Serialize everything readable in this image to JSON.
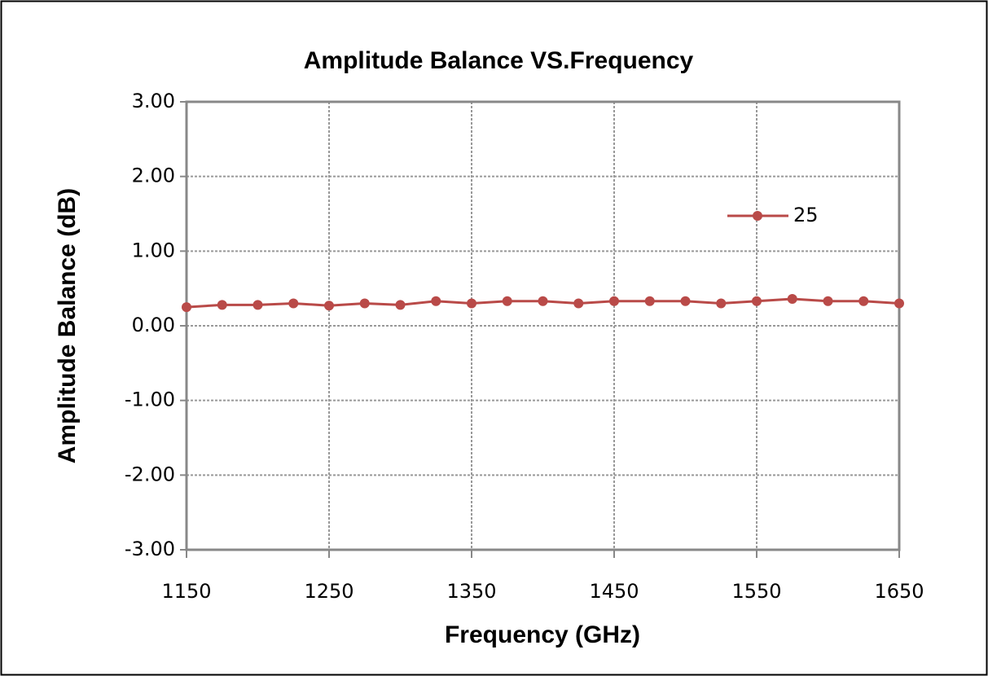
{
  "chart_data": {
    "type": "line",
    "title": "Amplitude Balance VS.Frequency",
    "x_label": "Frequency (GHz)",
    "y_label": "Amplitude Balance (dB)",
    "x": [
      1150,
      1175,
      1200,
      1225,
      1250,
      1275,
      1300,
      1325,
      1350,
      1375,
      1400,
      1425,
      1450,
      1475,
      1500,
      1525,
      1550,
      1575,
      1600,
      1625,
      1650
    ],
    "series": [
      {
        "name": "25",
        "color": "#b94a48",
        "values": [
          0.25,
          0.28,
          0.28,
          0.3,
          0.27,
          0.3,
          0.28,
          0.33,
          0.3,
          0.33,
          0.33,
          0.3,
          0.33,
          0.33,
          0.33,
          0.3,
          0.33,
          0.36,
          0.33,
          0.33,
          0.3
        ]
      }
    ],
    "xlim": [
      1150,
      1650
    ],
    "xticks": [
      1150,
      1250,
      1350,
      1450,
      1550,
      1650
    ],
    "ylim": [
      -3,
      3
    ],
    "yticks": [
      {
        "value": -3,
        "label": "-3.00"
      },
      {
        "value": -2,
        "label": "-2.00"
      },
      {
        "value": -1,
        "label": "-1.00"
      },
      {
        "value": 0,
        "label": "0.00"
      },
      {
        "value": 1,
        "label": "1.00"
      },
      {
        "value": 2,
        "label": "2.00"
      },
      {
        "value": 3,
        "label": "3.00"
      }
    ],
    "grid": true
  }
}
